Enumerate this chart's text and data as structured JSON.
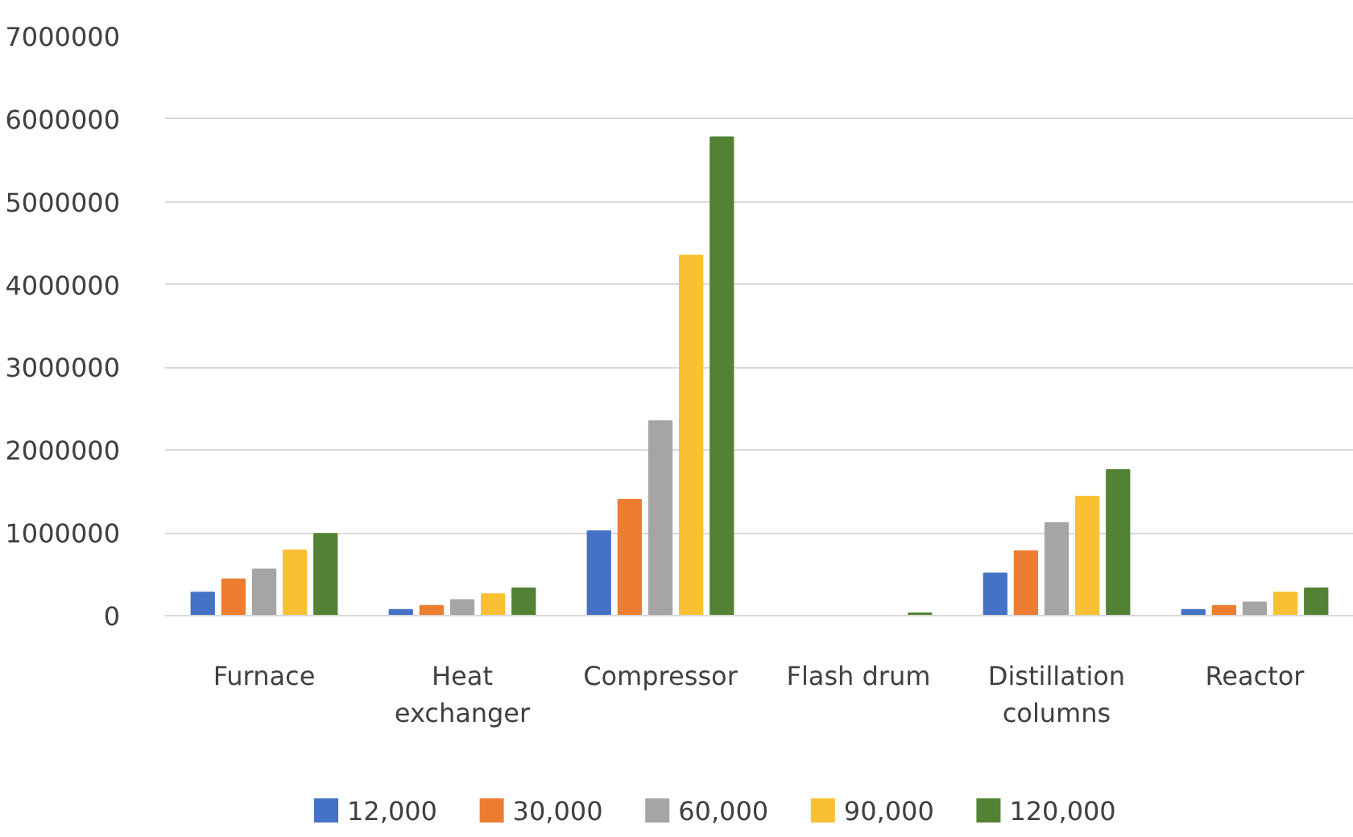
{
  "chart_data": {
    "type": "bar",
    "categories": [
      "Furnace",
      "Heat exchanger",
      "Compressor",
      "Flash drum",
      "Distillation columns",
      "Reactor"
    ],
    "series": [
      {
        "name": "12,000",
        "color": "#4472c4",
        "values": [
          280000,
          70000,
          1020000,
          0,
          510000,
          70000
        ]
      },
      {
        "name": "30,000",
        "color": "#ed7d31",
        "values": [
          440000,
          120000,
          1400000,
          0,
          780000,
          120000
        ]
      },
      {
        "name": "60,000",
        "color": "#a5a5a5",
        "values": [
          560000,
          190000,
          2350000,
          0,
          1120000,
          160000
        ]
      },
      {
        "name": "90,000",
        "color": "#fac034",
        "values": [
          790000,
          260000,
          4350000,
          0,
          1440000,
          280000
        ]
      },
      {
        "name": "120,000",
        "color": "#548235",
        "values": [
          990000,
          330000,
          5780000,
          30000,
          1760000,
          330000
        ]
      }
    ],
    "ylim": [
      0,
      7000000
    ],
    "yticks": [
      0,
      1000000,
      2000000,
      3000000,
      4000000,
      5000000,
      6000000,
      7000000
    ],
    "grid": "y",
    "legend": "bottom"
  }
}
